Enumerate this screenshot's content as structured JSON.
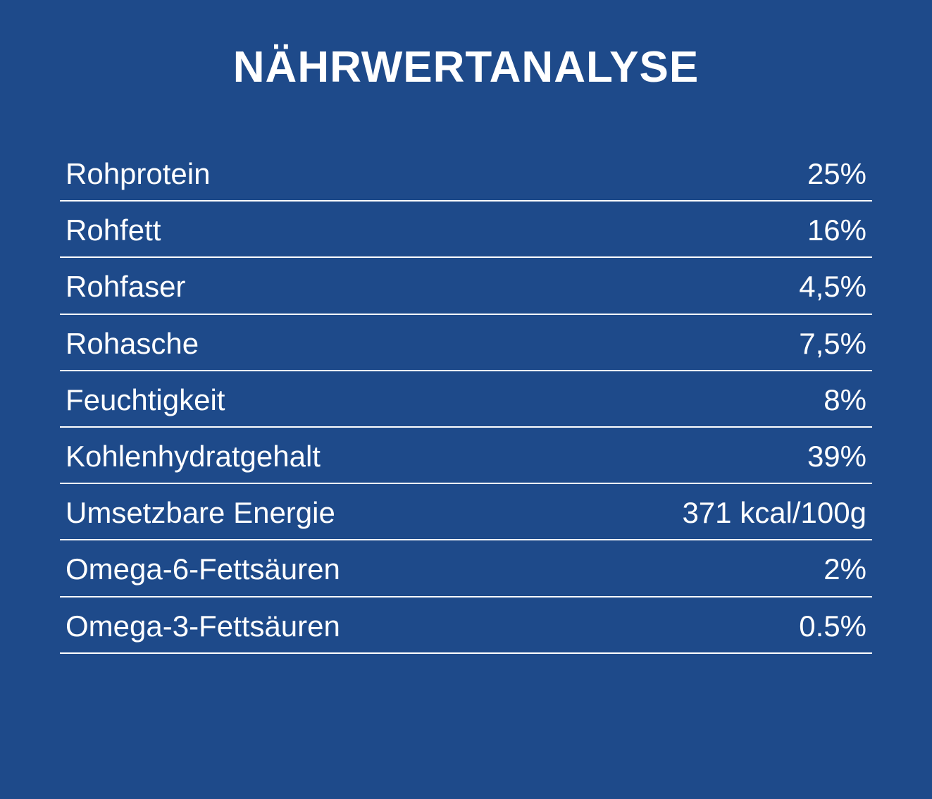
{
  "background_color": "#1e4a8a",
  "text_color": "#ffffff",
  "border_color": "#ffffff",
  "title": "NÄHRWERTANALYSE",
  "title_fontsize": 62,
  "row_fontsize": 42,
  "rows": [
    {
      "label": "Rohprotein",
      "value": "25%"
    },
    {
      "label": "Rohfett",
      "value": "16%"
    },
    {
      "label": "Rohfaser",
      "value": "4,5%"
    },
    {
      "label": "Rohasche",
      "value": "7,5%"
    },
    {
      "label": "Feuchtigkeit",
      "value": "8%"
    },
    {
      "label": "Kohlenhydratgehalt",
      "value": "39%"
    },
    {
      "label": "Umsetzbare Energie",
      "value": "371 kcal/100g"
    },
    {
      "label": "Omega-6-Fettsäuren",
      "value": "2%"
    },
    {
      "label": "Omega-3-Fettsäuren",
      "value": "0.5%"
    }
  ]
}
